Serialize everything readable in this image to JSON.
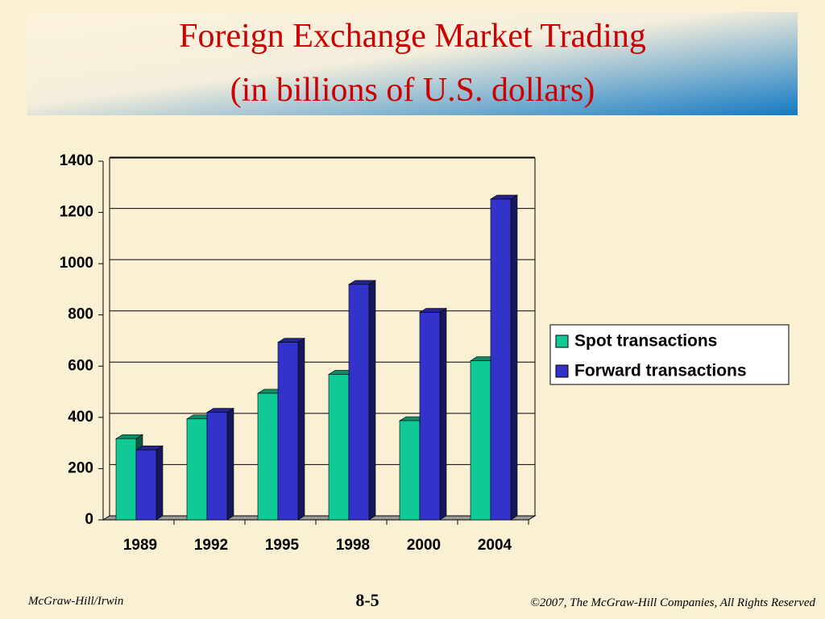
{
  "chart_data": {
    "type": "bar",
    "title": "Foreign Exchange Market Trading",
    "subtitle": "(in billions of U.S. dollars)",
    "categories": [
      "1989",
      "1992",
      "1995",
      "1998",
      "2000",
      "2004"
    ],
    "series": [
      {
        "name": "Spot transactions",
        "color": "#11c995",
        "values": [
          317,
          394,
          494,
          568,
          387,
          621
        ]
      },
      {
        "name": "Forward transactions",
        "color": "#3333cc",
        "values": [
          273,
          420,
          693,
          919,
          810,
          1252
        ]
      }
    ],
    "ylim": [
      0,
      1400
    ],
    "yticks": [
      0,
      200,
      400,
      600,
      800,
      1000,
      1200,
      1400
    ],
    "grid": true,
    "legend": "right"
  },
  "footer": {
    "left": "McGraw-Hill/Irwin",
    "center": "8-5",
    "right": "©2007, The McGraw-Hill Companies, All Rights Reserved"
  }
}
